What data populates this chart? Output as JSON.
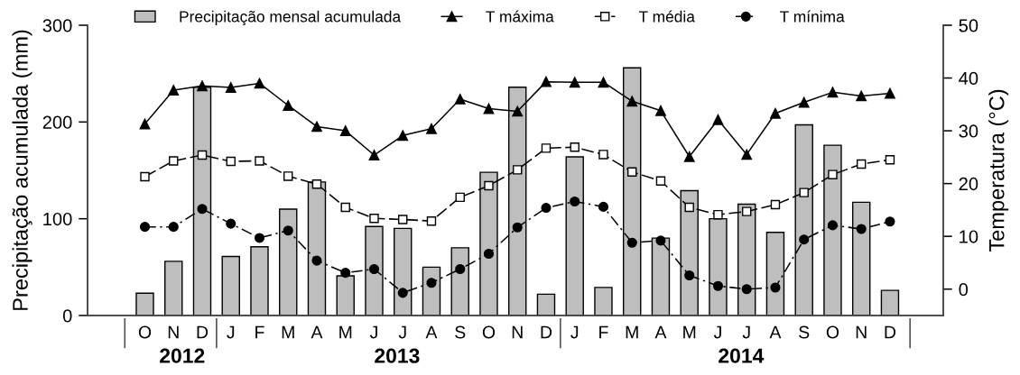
{
  "chart_data": {
    "type": "bar",
    "categories": [
      "O",
      "N",
      "D",
      "J",
      "F",
      "M",
      "A",
      "M",
      "J",
      "J",
      "A",
      "S",
      "O",
      "N",
      "D",
      "J",
      "F",
      "M",
      "A",
      "M",
      "J",
      "J",
      "A",
      "S",
      "O",
      "N",
      "D"
    ],
    "ylabel": "Precipitação acumulada (mm)",
    "y2label": "Temperatura (°C)",
    "ylim": [
      0,
      300
    ],
    "yticks": [
      0,
      100,
      200,
      300
    ],
    "y2lim": [
      -5,
      50
    ],
    "y2ticks": [
      0,
      10,
      20,
      30,
      40,
      50
    ],
    "annotations": [
      "2012",
      "2013",
      "2014"
    ],
    "legend": "top",
    "grid": false,
    "series": [
      {
        "name": "Precipitação mensal acumulada",
        "color": "#bebebe",
        "values": [
          23,
          56,
          236,
          61,
          71,
          110,
          138,
          41,
          92,
          90,
          50,
          70,
          148,
          236,
          22,
          164,
          29,
          256,
          80,
          129,
          100,
          115,
          86,
          197,
          176,
          117,
          26
        ]
      },
      {
        "name": "T máxima",
        "type": "line",
        "axis": "y2",
        "color": "#000000",
        "marker": "triangle",
        "line_style": "solid",
        "values": [
          31.3,
          37.7,
          38.5,
          38.2,
          39.0,
          34.8,
          30.8,
          30.0,
          25.4,
          29.1,
          30.4,
          36.0,
          34.2,
          33.7,
          39.3,
          39.2,
          39.2,
          35.6,
          33.8,
          25.1,
          32.1,
          25.5,
          33.3,
          35.4,
          37.3,
          36.6,
          37.1
        ]
      },
      {
        "name": "T média",
        "type": "line",
        "axis": "y2",
        "color": "#000000",
        "marker": "square",
        "line_style": "dashed",
        "values": [
          21.3,
          24.3,
          25.4,
          24.2,
          24.3,
          21.4,
          19.9,
          15.5,
          13.4,
          13.2,
          12.9,
          17.4,
          19.6,
          22.6,
          26.7,
          26.9,
          25.5,
          22.2,
          20.5,
          15.5,
          14.1,
          14.7,
          16.0,
          18.3,
          21.7,
          23.7,
          24.5
        ]
      },
      {
        "name": "T mínima",
        "type": "line",
        "axis": "y2",
        "color": "#000000",
        "marker": "circle",
        "line_style": "dashdot",
        "values": [
          11.8,
          11.8,
          15.2,
          12.4,
          9.7,
          11.1,
          5.4,
          3.1,
          3.8,
          -0.7,
          1.2,
          3.8,
          6.7,
          11.7,
          15.4,
          16.6,
          15.6,
          8.8,
          9.2,
          2.6,
          0.6,
          0.0,
          0.3,
          9.4,
          12.1,
          11.4,
          12.8
        ]
      }
    ]
  }
}
